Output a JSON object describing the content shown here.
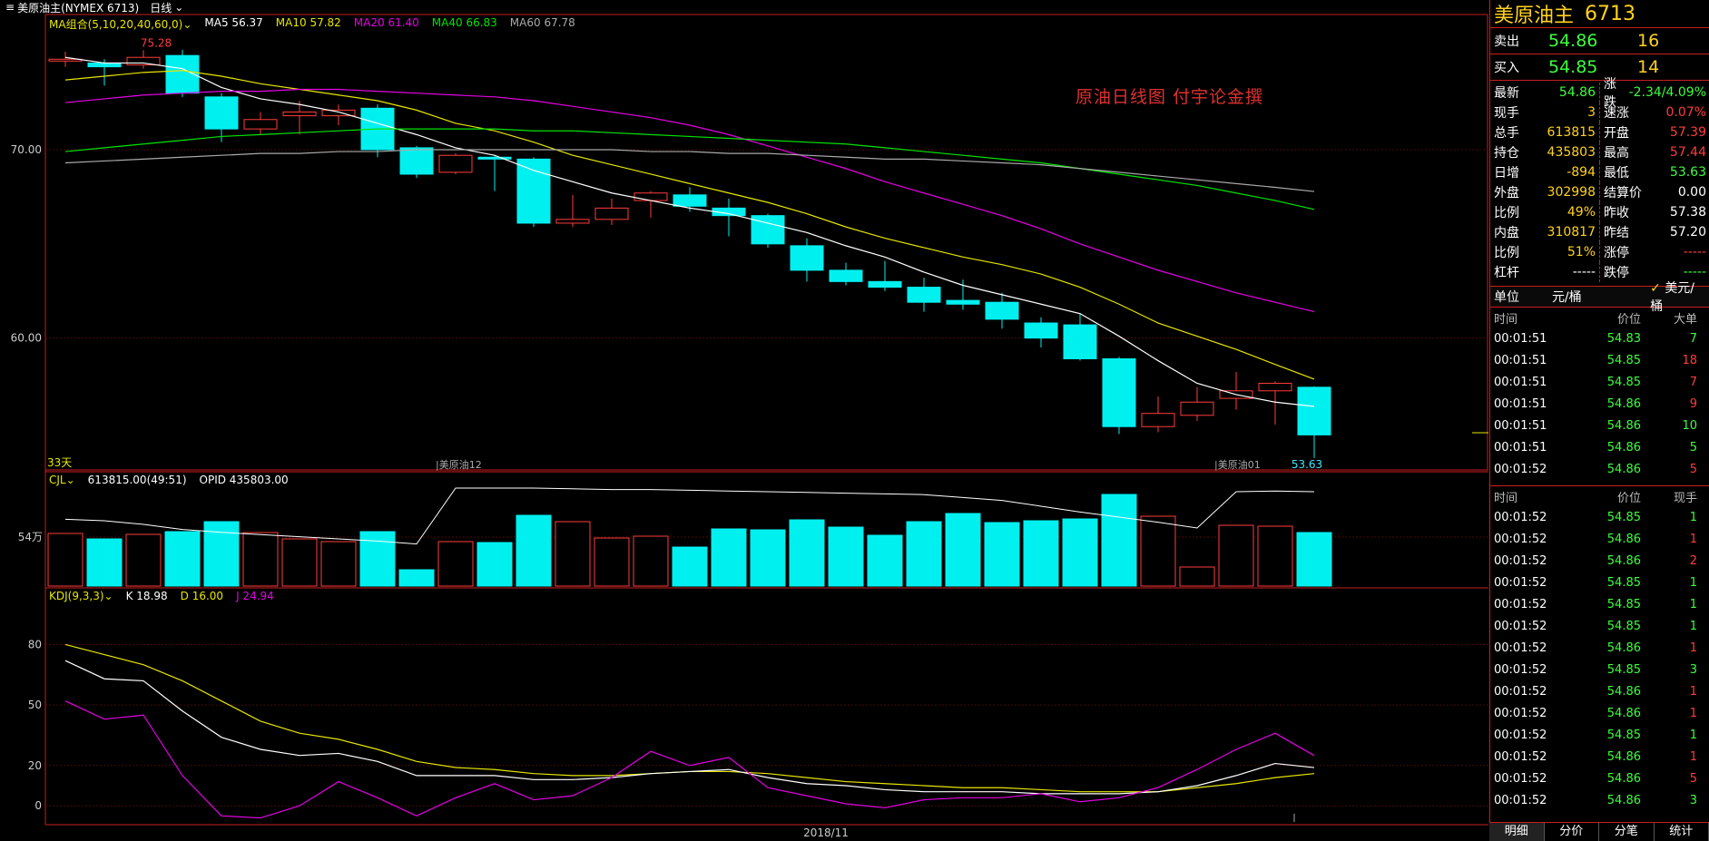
{
  "toolbar": {
    "symbol_tab": "美原油主(NYMEX 6713)",
    "period_tab": "日线"
  },
  "overlay_note": "原油日线图  付宇论金撰",
  "main_legend": {
    "name": "MA组合(5,10,20,40,60,0)",
    "items": [
      {
        "label": "MA5 56.37",
        "color": "#ffffff"
      },
      {
        "label": "MA10 57.82",
        "color": "#e6e600"
      },
      {
        "label": "MA20 61.40",
        "color": "#e600e6"
      },
      {
        "label": "MA40 66.83",
        "color": "#00e600"
      },
      {
        "label": "MA60 67.78",
        "color": "#aaaaaa"
      }
    ]
  },
  "volume_legend": {
    "name": "CJL",
    "items": [
      {
        "label": "613815.00(49:51)",
        "color": "#ffffff"
      },
      {
        "label": "OPID 435803.00",
        "color": "#ffffff"
      }
    ]
  },
  "kdj_legend": {
    "name": "KDJ(9,3,3)",
    "items": [
      {
        "label": "K 18.98",
        "color": "#ffffff"
      },
      {
        "label": "D 16.00",
        "color": "#e6e600"
      },
      {
        "label": "J 24.94",
        "color": "#e600e6"
      }
    ]
  },
  "panel": {
    "title": "美原油主",
    "code": "6713",
    "sell": {
      "label": "卖出",
      "price": "54.86",
      "vol": "16"
    },
    "buy": {
      "label": "买入",
      "price": "54.85",
      "vol": "14"
    },
    "stats": [
      {
        "k": "最新",
        "v": "54.86",
        "c": "g"
      },
      {
        "k": "涨跌",
        "v": "-2.34/4.09%",
        "c": "g"
      },
      {
        "k": "现手",
        "v": "3",
        "c": "y"
      },
      {
        "k": "速涨",
        "v": "0.07%",
        "c": "r"
      },
      {
        "k": "总手",
        "v": "613815",
        "c": "y"
      },
      {
        "k": "开盘",
        "v": "57.39",
        "c": "r"
      },
      {
        "k": "持仓",
        "v": "435803",
        "c": "y"
      },
      {
        "k": "最高",
        "v": "57.44",
        "c": "r"
      },
      {
        "k": "日增",
        "v": "-894",
        "c": "y"
      },
      {
        "k": "最低",
        "v": "53.63",
        "c": "g"
      },
      {
        "k": "外盘",
        "v": "302998",
        "c": "y"
      },
      {
        "k": "结算价",
        "v": "0.00",
        "c": "w"
      },
      {
        "k": "比例",
        "v": "49%",
        "c": "y"
      },
      {
        "k": "昨收",
        "v": "57.38",
        "c": "w"
      },
      {
        "k": "内盘",
        "v": "310817",
        "c": "y"
      },
      {
        "k": "昨结",
        "v": "57.20",
        "c": "w"
      },
      {
        "k": "比例",
        "v": "51%",
        "c": "y"
      },
      {
        "k": "涨停",
        "v": "-----",
        "c": "r"
      },
      {
        "k": "杠杆",
        "v": "-----",
        "c": "w"
      },
      {
        "k": "跌停",
        "v": "-----",
        "c": "g"
      }
    ],
    "unit": {
      "label": "单位",
      "opt1": "元/桶",
      "opt2": "美元/桶"
    },
    "big_orders": {
      "headers": [
        "时间",
        "价位",
        "大单"
      ],
      "rows": [
        [
          "00:01:51",
          "54.83",
          "7",
          "g"
        ],
        [
          "00:01:51",
          "54.85",
          "18",
          "r"
        ],
        [
          "00:01:51",
          "54.85",
          "7",
          "r"
        ],
        [
          "00:01:51",
          "54.86",
          "9",
          "r"
        ],
        [
          "00:01:51",
          "54.86",
          "10",
          "g"
        ],
        [
          "00:01:51",
          "54.86",
          "5",
          "g"
        ],
        [
          "00:01:52",
          "54.86",
          "5",
          "r"
        ]
      ]
    },
    "ticks": {
      "headers": [
        "时间",
        "价位",
        "现手"
      ],
      "rows": [
        [
          "00:01:52",
          "54.85",
          "1",
          "g"
        ],
        [
          "00:01:52",
          "54.86",
          "1",
          "r"
        ],
        [
          "00:01:52",
          "54.86",
          "2",
          "r"
        ],
        [
          "00:01:52",
          "54.85",
          "1",
          "g"
        ],
        [
          "00:01:52",
          "54.85",
          "1",
          "g"
        ],
        [
          "00:01:52",
          "54.85",
          "1",
          "g"
        ],
        [
          "00:01:52",
          "54.86",
          "1",
          "r"
        ],
        [
          "00:01:52",
          "54.85",
          "3",
          "g"
        ],
        [
          "00:01:52",
          "54.86",
          "1",
          "r"
        ],
        [
          "00:01:52",
          "54.86",
          "1",
          "r"
        ],
        [
          "00:01:52",
          "54.85",
          "1",
          "g"
        ],
        [
          "00:01:52",
          "54.86",
          "1",
          "r"
        ],
        [
          "00:01:52",
          "54.86",
          "5",
          "r"
        ],
        [
          "00:01:52",
          "54.86",
          "3",
          "g"
        ]
      ]
    },
    "bottom_tabs": [
      "明细",
      "分价",
      "分笔",
      "统计"
    ]
  },
  "chart_data": {
    "type": "candlestick",
    "price_axis": {
      "ticks": [
        70.0,
        60.0
      ],
      "range": [
        53.0,
        76.5
      ]
    },
    "labels": {
      "high_mark": "75.28",
      "low_mark": "53.63",
      "days": "33天",
      "contract_a": "美原油12",
      "contract_b": "美原油01",
      "x_label": "2018/11"
    },
    "candles": [
      [
        74.8,
        75.2,
        74.4,
        74.8
      ],
      [
        74.6,
        74.8,
        73.4,
        74.4
      ],
      [
        74.5,
        75.28,
        74.3,
        74.9
      ],
      [
        75.0,
        75.3,
        72.8,
        73.0
      ],
      [
        72.8,
        73.0,
        70.4,
        71.1
      ],
      [
        71.1,
        72.0,
        70.8,
        71.6
      ],
      [
        71.8,
        72.6,
        70.8,
        72.0
      ],
      [
        71.8,
        72.4,
        71.3,
        72.1
      ],
      [
        72.2,
        72.4,
        69.6,
        70.0
      ],
      [
        70.1,
        70.2,
        68.5,
        68.7
      ],
      [
        68.8,
        69.8,
        68.7,
        69.7
      ],
      [
        69.6,
        69.7,
        67.8,
        69.5
      ],
      [
        69.5,
        69.6,
        65.9,
        66.1
      ],
      [
        66.1,
        67.6,
        65.9,
        66.3
      ],
      [
        66.3,
        67.4,
        66.0,
        66.9
      ],
      [
        67.3,
        67.8,
        66.4,
        67.7
      ],
      [
        67.6,
        68.0,
        66.7,
        67.0
      ],
      [
        66.9,
        67.4,
        65.4,
        66.5
      ],
      [
        66.5,
        66.6,
        64.8,
        65.0
      ],
      [
        64.9,
        65.3,
        63.0,
        63.6
      ],
      [
        63.6,
        64.0,
        62.8,
        63.0
      ],
      [
        63.0,
        64.1,
        62.5,
        62.7
      ],
      [
        62.7,
        63.2,
        61.4,
        61.9
      ],
      [
        62.0,
        63.1,
        61.5,
        61.8
      ],
      [
        61.9,
        62.4,
        60.5,
        61.0
      ],
      [
        60.8,
        61.1,
        59.5,
        60.0
      ],
      [
        60.7,
        61.3,
        58.8,
        58.9
      ],
      [
        58.9,
        59.0,
        54.9,
        55.3
      ],
      [
        55.3,
        56.9,
        55.0,
        56.0
      ],
      [
        55.9,
        57.4,
        55.6,
        56.6
      ],
      [
        56.8,
        58.2,
        56.2,
        57.2
      ],
      [
        57.2,
        57.7,
        55.4,
        57.6
      ],
      [
        57.39,
        57.44,
        53.63,
        54.86
      ]
    ],
    "ma": {
      "MA5": [
        74.9,
        74.6,
        74.6,
        74.3,
        73.3,
        72.7,
        72.4,
        72.0,
        71.4,
        70.8,
        70.1,
        69.7,
        68.9,
        68.3,
        67.7,
        67.3,
        66.9,
        66.6,
        66.1,
        65.6,
        64.9,
        64.3,
        63.5,
        62.8,
        62.3,
        61.8,
        61.3,
        60.1,
        58.8,
        57.6,
        57.0,
        56.6,
        56.37
      ],
      "MA10": [
        73.7,
        73.9,
        74.1,
        74.2,
        73.9,
        73.5,
        73.2,
        72.9,
        72.6,
        72.1,
        71.4,
        71.0,
        70.4,
        69.7,
        69.2,
        68.7,
        68.2,
        67.7,
        67.2,
        66.6,
        65.9,
        65.3,
        64.8,
        64.3,
        63.9,
        63.4,
        62.7,
        61.8,
        60.8,
        60.1,
        59.4,
        58.6,
        57.82
      ],
      "MA20": [
        72.5,
        72.7,
        72.9,
        73.0,
        73.1,
        73.1,
        73.2,
        73.2,
        73.1,
        73.0,
        72.9,
        72.8,
        72.6,
        72.3,
        72.0,
        71.7,
        71.3,
        70.8,
        70.2,
        69.6,
        69.0,
        68.3,
        67.7,
        67.1,
        66.5,
        65.8,
        65.0,
        64.3,
        63.6,
        63.0,
        62.4,
        61.9,
        61.4
      ],
      "MA40": [
        69.9,
        70.1,
        70.3,
        70.5,
        70.7,
        70.8,
        70.9,
        71.0,
        71.1,
        71.1,
        71.1,
        71.1,
        71.0,
        71.0,
        70.9,
        70.8,
        70.7,
        70.6,
        70.5,
        70.4,
        70.3,
        70.1,
        69.9,
        69.7,
        69.5,
        69.3,
        69.0,
        68.7,
        68.4,
        68.1,
        67.7,
        67.3,
        66.83
      ],
      "MA60": [
        69.3,
        69.4,
        69.5,
        69.6,
        69.7,
        69.8,
        69.8,
        69.9,
        69.9,
        70.0,
        70.0,
        70.0,
        70.0,
        70.0,
        70.0,
        69.9,
        69.9,
        69.8,
        69.8,
        69.7,
        69.6,
        69.5,
        69.5,
        69.4,
        69.3,
        69.2,
        69.0,
        68.8,
        68.6,
        68.4,
        68.2,
        68.0,
        67.78
      ]
    },
    "volume": {
      "axis_label": "54万",
      "values": [
        58,
        52,
        57,
        60,
        71,
        59,
        52,
        49,
        60,
        18,
        49,
        48,
        78,
        71,
        53,
        55,
        43,
        63,
        62,
        73,
        65,
        56,
        71,
        80,
        70,
        72,
        74,
        101,
        77,
        21,
        67,
        66,
        59
      ],
      "oi": [
        92,
        90,
        85,
        78,
        74,
        71,
        68,
        65,
        62,
        58,
        135,
        135,
        135,
        134,
        133,
        133,
        132,
        131,
        130,
        129,
        128,
        127,
        126,
        122,
        118,
        110,
        102,
        95,
        88,
        80,
        130,
        131,
        130
      ]
    },
    "kdj": {
      "ticks": [
        80,
        50,
        20,
        0
      ],
      "range": [
        -8,
        100
      ],
      "K": [
        72,
        63,
        62,
        47,
        34,
        28,
        25,
        26,
        22,
        15,
        15,
        15,
        13,
        13,
        14,
        16,
        17,
        18,
        14,
        11,
        10,
        8,
        7,
        7,
        7,
        6,
        6,
        6,
        7,
        10,
        15,
        21,
        18.98
      ],
      "D": [
        80,
        75,
        70,
        62,
        52,
        42,
        36,
        33,
        28,
        22,
        19,
        18,
        16,
        15,
        15,
        16,
        17,
        17,
        16,
        14,
        12,
        11,
        10,
        9,
        9,
        8,
        7,
        7,
        7,
        9,
        11,
        14,
        16.0
      ],
      "J": [
        52,
        43,
        45,
        15,
        -5,
        -6,
        0,
        12,
        4,
        -5,
        4,
        11,
        3,
        5,
        14,
        27,
        20,
        24,
        9,
        5,
        1,
        -1,
        3,
        4,
        4,
        6,
        2,
        4,
        9,
        18,
        28,
        36,
        24.94
      ]
    }
  }
}
